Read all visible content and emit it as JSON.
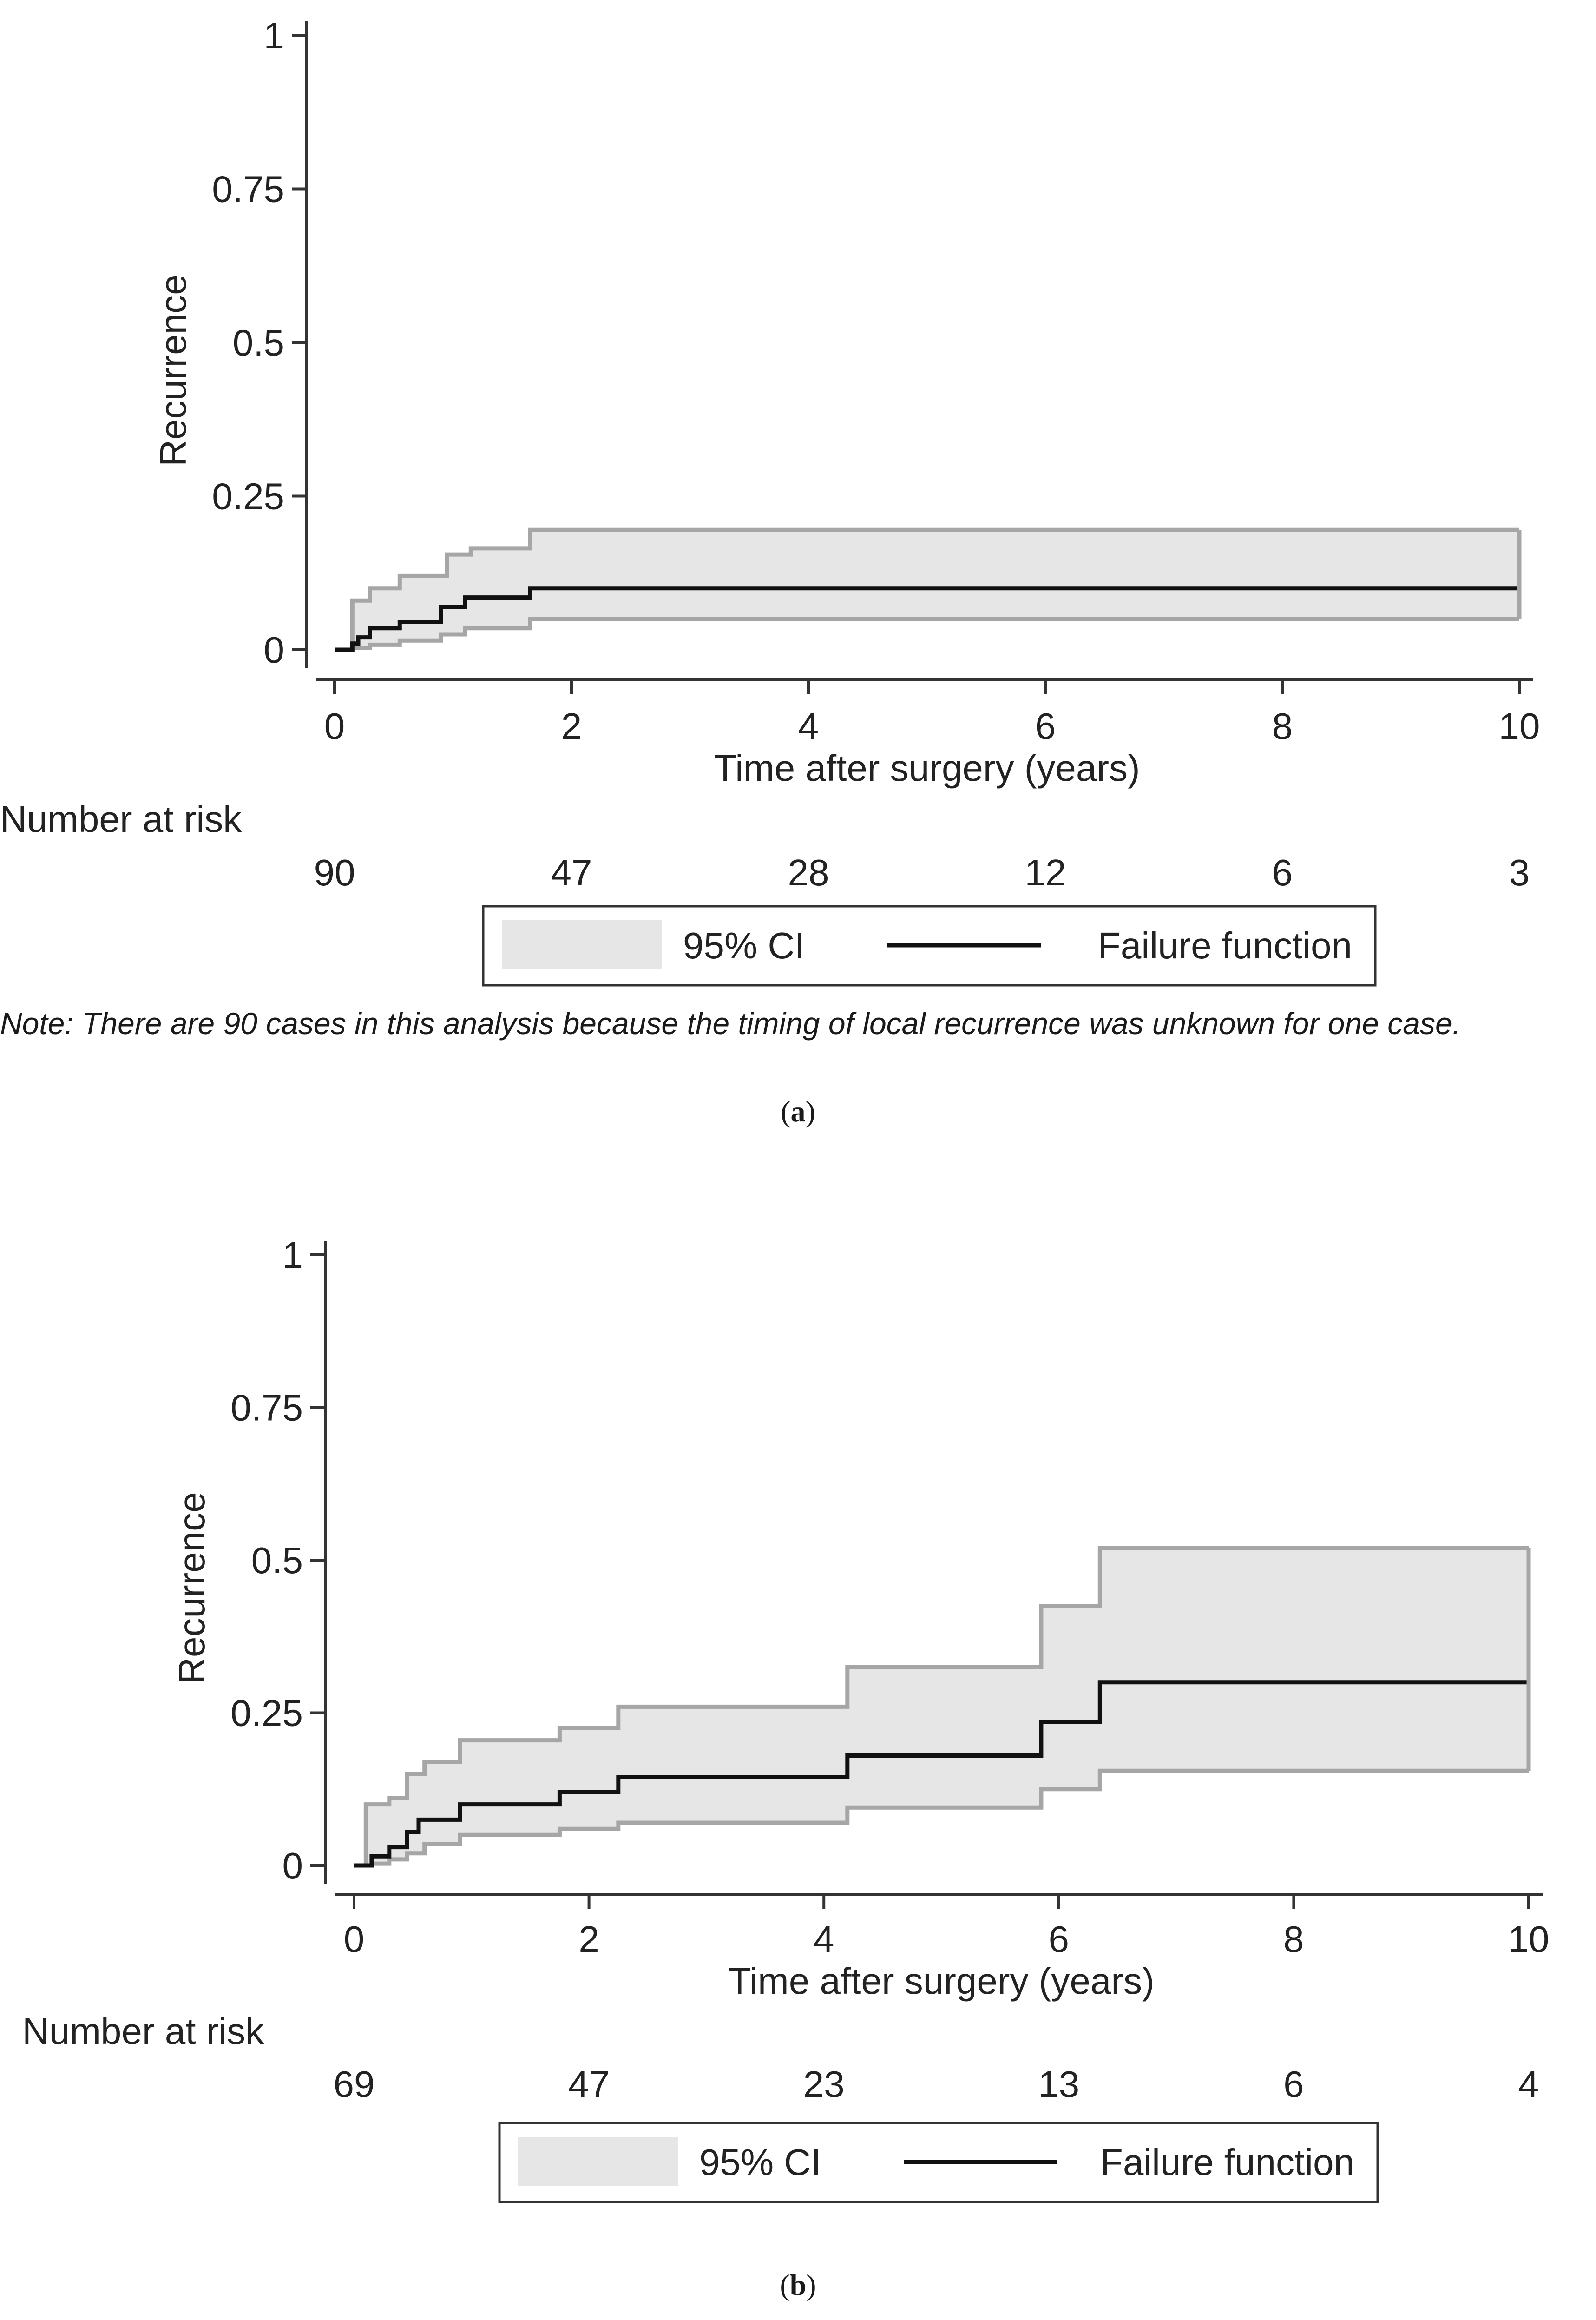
{
  "chart_data": [
    {
      "panel": "a",
      "type": "line",
      "ylabel": "Recurrence",
      "xlabel": "Time after surgery (years)",
      "xlim": [
        0,
        10
      ],
      "ylim": [
        0,
        1
      ],
      "xticks": [
        "0",
        "2",
        "4",
        "6",
        "8",
        "10"
      ],
      "yticks": [
        "0",
        "0.25",
        "0.5",
        "0.75",
        "1"
      ],
      "risk_title": "Number at risk",
      "number_at_risk": [
        "90",
        "47",
        "28",
        "12",
        "6",
        "3"
      ],
      "legend": {
        "ci_label": "95% CI",
        "line_label": "Failure function"
      },
      "series": [
        {
          "name": "Failure function",
          "x": [
            0,
            0.15,
            0.2,
            0.3,
            0.55,
            0.9,
            1.1,
            1.65,
            10
          ],
          "values": [
            0,
            0.01,
            0.02,
            0.035,
            0.045,
            0.07,
            0.085,
            0.1,
            0.1
          ]
        },
        {
          "name": "95% CI upper",
          "x": [
            0,
            0.15,
            0.3,
            0.55,
            0.95,
            1.15,
            1.65,
            10
          ],
          "values": [
            0,
            0.08,
            0.1,
            0.12,
            0.155,
            0.165,
            0.195,
            0.195
          ]
        },
        {
          "name": "95% CI lower",
          "x": [
            0,
            0.15,
            0.3,
            0.55,
            0.9,
            1.1,
            1.65,
            10
          ],
          "values": [
            0,
            0.003,
            0.008,
            0.015,
            0.025,
            0.035,
            0.05,
            0.05
          ]
        }
      ],
      "note": "Note: There are 90 cases in this analysis because the timing of local recurrence was unknown for one case.",
      "caption_pre": "(",
      "caption_letter": "a",
      "caption_post": ")"
    },
    {
      "panel": "b",
      "type": "line",
      "ylabel": "Recurrence",
      "xlabel": "Time after surgery (years)",
      "xlim": [
        0,
        10
      ],
      "ylim": [
        0,
        1
      ],
      "xticks": [
        "0",
        "2",
        "4",
        "6",
        "8",
        "10"
      ],
      "yticks": [
        "0",
        "0.25",
        "0.5",
        "0.75",
        "1"
      ],
      "risk_title": "Number at risk",
      "number_at_risk": [
        "69",
        "47",
        "23",
        "13",
        "6",
        "4"
      ],
      "legend": {
        "ci_label": "95% CI",
        "line_label": "Failure function"
      },
      "series": [
        {
          "name": "Failure function",
          "x": [
            0,
            0.15,
            0.3,
            0.45,
            0.55,
            0.9,
            1.75,
            2.25,
            4.2,
            5.85,
            6.35,
            10
          ],
          "values": [
            0,
            0.015,
            0.03,
            0.055,
            0.075,
            0.1,
            0.12,
            0.145,
            0.18,
            0.235,
            0.3,
            0.3
          ]
        },
        {
          "name": "95% CI upper",
          "x": [
            0,
            0.1,
            0.3,
            0.45,
            0.6,
            0.9,
            1.75,
            2.25,
            4.2,
            5.85,
            6.35,
            10
          ],
          "values": [
            0,
            0.1,
            0.11,
            0.15,
            0.17,
            0.205,
            0.225,
            0.26,
            0.325,
            0.425,
            0.52,
            0.52
          ]
        },
        {
          "name": "95% CI lower",
          "x": [
            0,
            0.15,
            0.3,
            0.45,
            0.6,
            0.9,
            1.75,
            2.25,
            4.2,
            5.85,
            6.35,
            10
          ],
          "values": [
            0,
            0.003,
            0.01,
            0.02,
            0.035,
            0.05,
            0.06,
            0.07,
            0.095,
            0.125,
            0.155,
            0.155
          ]
        }
      ],
      "caption_pre": "(",
      "caption_letter": "b",
      "caption_post": ")"
    }
  ],
  "colors": {
    "ci_fill": "#e6e6e6",
    "ci_edge": "#a6a6a6",
    "line": "#111111",
    "axis": "#333333"
  }
}
